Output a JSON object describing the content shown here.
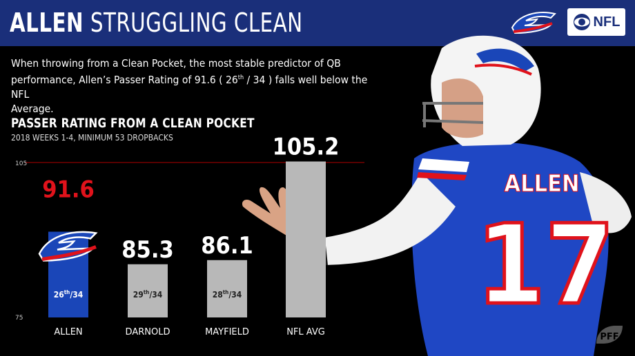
{
  "header": {
    "title_bold": "ALLEN",
    "title_rest": "STRUGGLING CLEAN",
    "network_label": "NFL"
  },
  "intro": {
    "line1": "When throwing from a Clean Pocket, the most stable predictor of QB",
    "line2a": "performance, Allen’s Passer Rating of 91.6 ( 26",
    "line2sup": "th",
    "line2b": " / 34 ) falls well below the NFL",
    "line3": "Average."
  },
  "jersey": {
    "name": "ALLEN",
    "number": "17"
  },
  "footer_logo": "PFF",
  "colors": {
    "header": "#1a2f7a",
    "highlight": "#e0121b",
    "allen_bar": "#1a46b8",
    "gray_bar": "#b8b8b8",
    "ref_line": "#8b0000"
  },
  "chart_data": {
    "type": "bar",
    "title": "PASSER RATING FROM A CLEAN POCKET",
    "subtitle": "2018 WEEKS 1-4, MINIMUM 53 DROPBACKS",
    "categories": [
      "ALLEN",
      "DARNOLD",
      "MAYFIELD",
      "NFL AVG"
    ],
    "values": [
      91.6,
      85.3,
      86.1,
      105.2
    ],
    "value_labels": [
      "91.6",
      "85.3",
      "86.1",
      "105.2"
    ],
    "ranks": [
      {
        "num": "26",
        "sup": "th",
        "den": "/34"
      },
      {
        "num": "29",
        "sup": "th",
        "den": "/34"
      },
      {
        "num": "28",
        "sup": "th",
        "den": "/34"
      },
      null
    ],
    "ylim": [
      75,
      105
    ],
    "ytick_labels": [
      "75",
      "105"
    ],
    "reference_line": 105
  }
}
